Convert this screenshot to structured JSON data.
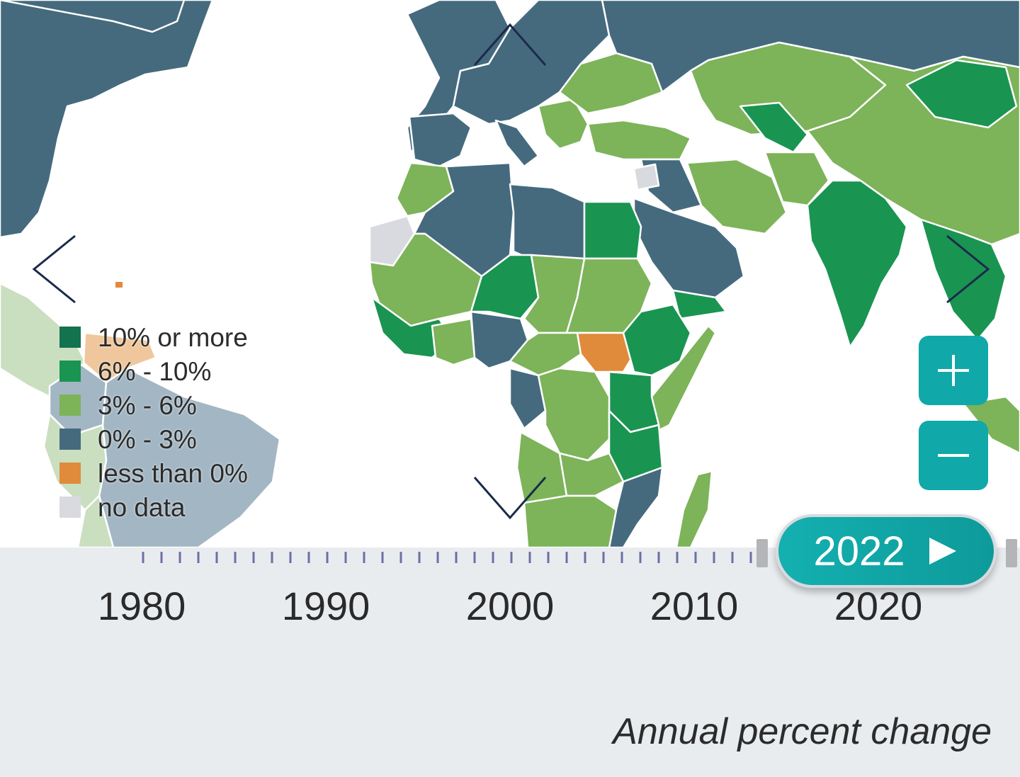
{
  "colors": {
    "ten_plus": "#13734e",
    "six_ten": "#1a9451",
    "three_six": "#7db359",
    "zero_three": "#456a7e",
    "less_zero": "#e08b3b",
    "no_data": "#d8dadf",
    "accent": "#10a8a8",
    "arrow": "#1b2a4a"
  },
  "legend": {
    "items": [
      {
        "label": "10% or more",
        "color": "#13734e"
      },
      {
        "label": "6% - 10%",
        "color": "#1a9451"
      },
      {
        "label": "3% - 6%",
        "color": "#7db359"
      },
      {
        "label": "0% - 3%",
        "color": "#456a7e"
      },
      {
        "label": "less than 0%",
        "color": "#e08b3b"
      },
      {
        "label": "no data",
        "color": "#d8dadf"
      }
    ]
  },
  "navigation": {
    "up_icon": "chevron-up-icon",
    "down_icon": "chevron-down-icon",
    "left_icon": "chevron-left-icon",
    "right_icon": "chevron-right-icon"
  },
  "zoom": {
    "in_label": "+",
    "out_label": "−"
  },
  "timeline": {
    "year_labels": [
      "1980",
      "1990",
      "2000",
      "2010",
      "2020"
    ],
    "selected_year": "2022",
    "play_icon": "play-icon"
  },
  "caption": "Annual percent change"
}
